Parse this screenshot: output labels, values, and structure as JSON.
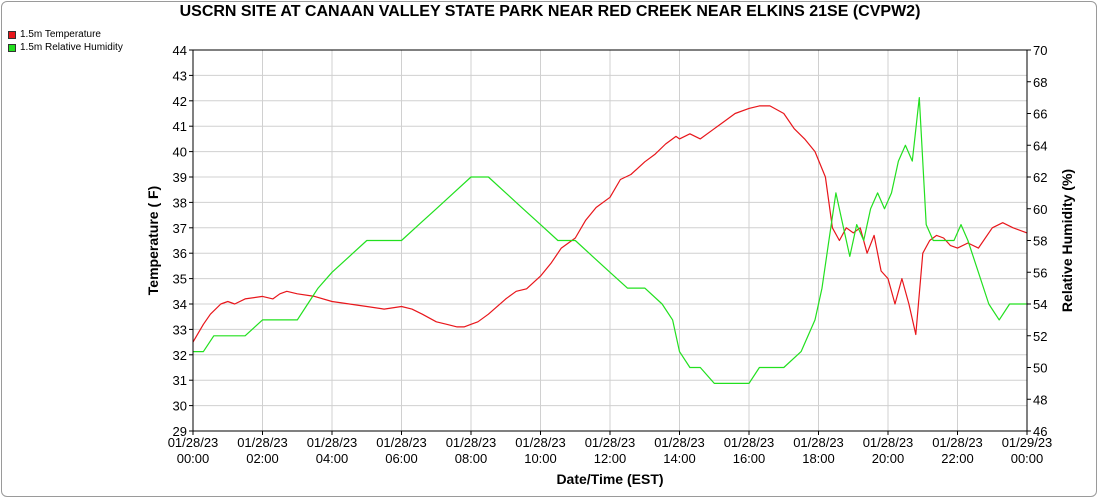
{
  "chart_data": {
    "type": "line",
    "title": "USCRN SITE AT CANAAN VALLEY STATE PARK NEAR RED CREEK NEAR ELKINS 21SE (CVPW2)",
    "xlabel": "Date/Time (EST)",
    "ylabel_left": "Temperature ( F)",
    "ylabel_right": "Relative Humidity (%)",
    "ylim_left": [
      29,
      44
    ],
    "ylim_right": [
      46,
      70
    ],
    "xlim_hours": [
      0,
      24
    ],
    "x_tick_labels": [
      [
        "01/28/23",
        "00:00"
      ],
      [
        "01/28/23",
        "02:00"
      ],
      [
        "01/28/23",
        "04:00"
      ],
      [
        "01/28/23",
        "06:00"
      ],
      [
        "01/28/23",
        "08:00"
      ],
      [
        "01/28/23",
        "10:00"
      ],
      [
        "01/28/23",
        "12:00"
      ],
      [
        "01/28/23",
        "14:00"
      ],
      [
        "01/28/23",
        "16:00"
      ],
      [
        "01/28/23",
        "18:00"
      ],
      [
        "01/28/23",
        "20:00"
      ],
      [
        "01/28/23",
        "22:00"
      ],
      [
        "01/29/23",
        "00:00"
      ]
    ],
    "y_ticks_left": [
      29,
      30,
      31,
      32,
      33,
      34,
      35,
      36,
      37,
      38,
      39,
      40,
      41,
      42,
      43,
      44
    ],
    "y_ticks_right": [
      46,
      48,
      50,
      52,
      54,
      56,
      58,
      60,
      62,
      64,
      66,
      68,
      70
    ],
    "grid": true,
    "legend_position": "top-left",
    "series": [
      {
        "name": "1.5m Temperature",
        "color": "#e8161b",
        "axis": "left",
        "x": [
          0,
          0.3,
          0.5,
          0.8,
          1.0,
          1.2,
          1.5,
          2.0,
          2.3,
          2.5,
          2.7,
          3.0,
          3.5,
          4.0,
          4.5,
          5.0,
          5.5,
          6.0,
          6.3,
          6.6,
          7.0,
          7.3,
          7.6,
          7.8,
          8.0,
          8.2,
          8.5,
          9.0,
          9.3,
          9.6,
          10.0,
          10.3,
          10.6,
          11.0,
          11.3,
          11.6,
          12.0,
          12.3,
          12.6,
          13.0,
          13.3,
          13.6,
          13.9,
          14.0,
          14.3,
          14.6,
          15.0,
          15.3,
          15.6,
          16.0,
          16.3,
          16.6,
          17.0,
          17.3,
          17.6,
          17.9,
          18.2,
          18.4,
          18.6,
          18.8,
          19.0,
          19.2,
          19.4,
          19.6,
          19.8,
          20.0,
          20.2,
          20.4,
          20.6,
          20.8,
          21.0,
          21.2,
          21.4,
          21.6,
          21.8,
          22.0,
          22.3,
          22.6,
          23.0,
          23.3,
          23.6,
          24.0
        ],
        "values": [
          32.5,
          33.2,
          33.6,
          34.0,
          34.1,
          34.0,
          34.2,
          34.3,
          34.2,
          34.4,
          34.5,
          34.4,
          34.3,
          34.1,
          34.0,
          33.9,
          33.8,
          33.9,
          33.8,
          33.6,
          33.3,
          33.2,
          33.1,
          33.1,
          33.2,
          33.3,
          33.6,
          34.2,
          34.5,
          34.6,
          35.1,
          35.6,
          36.2,
          36.6,
          37.3,
          37.8,
          38.2,
          38.9,
          39.1,
          39.6,
          39.9,
          40.3,
          40.6,
          40.5,
          40.7,
          40.5,
          40.9,
          41.2,
          41.5,
          41.7,
          41.8,
          41.8,
          41.5,
          40.9,
          40.5,
          40.0,
          39.0,
          37.0,
          36.5,
          37.0,
          36.8,
          37.0,
          36.0,
          36.7,
          35.3,
          35.0,
          34.0,
          35.0,
          34.0,
          32.8,
          36.0,
          36.5,
          36.7,
          36.6,
          36.3,
          36.2,
          36.4,
          36.2,
          37.0,
          37.2,
          37.0,
          36.8
        ]
      },
      {
        "name": "1.5m Relative Humidity",
        "color": "#22e01f",
        "axis": "right",
        "x": [
          0,
          0.3,
          0.6,
          1.0,
          1.5,
          2.0,
          2.5,
          3.0,
          3.3,
          3.6,
          4.0,
          4.5,
          5.0,
          5.5,
          6.0,
          6.5,
          7.0,
          7.5,
          8.0,
          8.5,
          9.0,
          9.5,
          10.0,
          10.5,
          11.0,
          11.5,
          12.0,
          12.5,
          13.0,
          13.5,
          13.8,
          14.0,
          14.3,
          14.6,
          15.0,
          15.5,
          16.0,
          16.3,
          16.6,
          17.0,
          17.5,
          17.9,
          18.1,
          18.3,
          18.5,
          18.7,
          18.9,
          19.1,
          19.3,
          19.5,
          19.7,
          19.9,
          20.1,
          20.3,
          20.5,
          20.7,
          20.9,
          21.1,
          21.3,
          21.5,
          21.7,
          21.9,
          22.1,
          22.3,
          22.6,
          22.9,
          23.2,
          23.5,
          24.0
        ],
        "values": [
          51,
          51,
          52,
          52,
          52,
          53,
          53,
          53,
          54,
          55,
          56,
          57,
          58,
          58,
          58,
          59,
          60,
          61,
          62,
          62,
          61,
          60,
          59,
          58,
          58,
          57,
          56,
          55,
          55,
          54,
          53,
          51,
          50,
          50,
          49,
          49,
          49,
          50,
          50,
          50,
          51,
          53,
          55,
          58,
          61,
          59,
          57,
          59,
          58,
          60,
          61,
          60,
          61,
          63,
          64,
          63,
          67,
          59,
          58,
          58,
          58,
          58,
          59,
          58,
          56,
          54,
          53,
          54,
          54
        ]
      }
    ]
  }
}
